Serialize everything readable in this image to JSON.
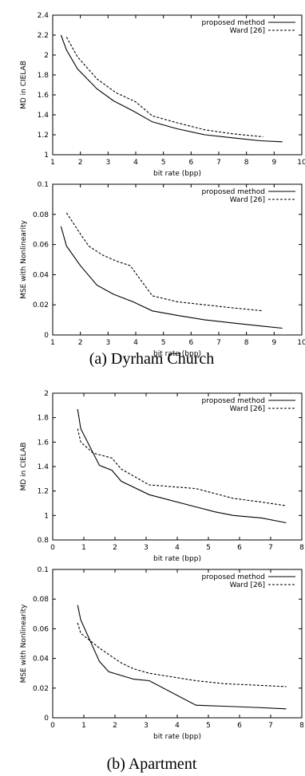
{
  "captions": {
    "a": "(a) Dyrham Church",
    "b": "(b) Apartment"
  },
  "chart_data": [
    {
      "type": "line",
      "xlabel": "bit rate (bpp)",
      "ylabel": "MD in CIELAB",
      "xlim": [
        1,
        10
      ],
      "ylim": [
        1,
        2.4
      ],
      "xticks": [
        1,
        2,
        3,
        4,
        5,
        6,
        7,
        8,
        9,
        10
      ],
      "yticks": [
        1,
        1.2,
        1.4,
        1.6,
        1.8,
        2,
        2.2,
        2.4
      ],
      "xtick_labels": [
        "1",
        "2",
        "3",
        "4",
        "5",
        "6",
        "7",
        "8",
        "9",
        "10"
      ],
      "ytick_labels": [
        "1",
        "1.2",
        "1.4",
        "1.6",
        "1.8",
        "2",
        "2.2",
        "2.4"
      ],
      "legend": "top-right",
      "grid": false,
      "series": [
        {
          "name": "proposed method",
          "style": "solid",
          "x": [
            1.3,
            1.5,
            1.9,
            2.6,
            3.2,
            3.9,
            4.6,
            5.5,
            6.5,
            7.5,
            8.5,
            9.3
          ],
          "y": [
            2.2,
            2.05,
            1.86,
            1.66,
            1.54,
            1.44,
            1.33,
            1.26,
            1.2,
            1.17,
            1.14,
            1.13
          ]
        },
        {
          "name": "Ward [26]",
          "style": "dashed",
          "x": [
            1.5,
            1.9,
            2.6,
            3.3,
            4.0,
            4.6,
            5.5,
            6.5,
            7.5,
            8.6
          ],
          "y": [
            2.18,
            1.98,
            1.76,
            1.62,
            1.53,
            1.39,
            1.32,
            1.25,
            1.21,
            1.18
          ]
        }
      ]
    },
    {
      "type": "line",
      "xlabel": "bit rate (bpp)",
      "ylabel": "MSE with Nonlinearity",
      "xlim": [
        1,
        10
      ],
      "ylim": [
        0,
        0.1
      ],
      "xticks": [
        1,
        2,
        3,
        4,
        5,
        6,
        7,
        8,
        9,
        10
      ],
      "yticks": [
        0,
        0.02,
        0.04,
        0.06,
        0.08,
        0.1
      ],
      "xtick_labels": [
        "1",
        "2",
        "3",
        "4",
        "5",
        "6",
        "7",
        "8",
        "9",
        "10"
      ],
      "ytick_labels": [
        "0",
        "0.02",
        "0.04",
        "0.06",
        "0.08",
        "0.1"
      ],
      "legend": "top-right",
      "grid": false,
      "series": [
        {
          "name": "proposed method",
          "style": "solid",
          "x": [
            1.3,
            1.5,
            2.0,
            2.6,
            3.2,
            3.9,
            4.6,
            5.5,
            6.5,
            7.5,
            8.5,
            9.3
          ],
          "y": [
            0.072,
            0.059,
            0.046,
            0.033,
            0.027,
            0.022,
            0.016,
            0.013,
            0.01,
            0.008,
            0.006,
            0.0045
          ]
        },
        {
          "name": "Ward [26]",
          "style": "dashed",
          "x": [
            1.5,
            2.0,
            2.3,
            2.8,
            3.3,
            3.8,
            4.6,
            5.5,
            6.5,
            7.5,
            8.6
          ],
          "y": [
            0.081,
            0.067,
            0.059,
            0.053,
            0.049,
            0.046,
            0.026,
            0.022,
            0.02,
            0.018,
            0.016
          ]
        }
      ]
    },
    {
      "type": "line",
      "xlabel": "bit rate (bpp)",
      "ylabel": "MD in CIELAB",
      "xlim": [
        0,
        8
      ],
      "ylim": [
        0.8,
        2
      ],
      "xticks": [
        0,
        1,
        2,
        3,
        4,
        5,
        6,
        7,
        8
      ],
      "yticks": [
        0.8,
        1,
        1.2,
        1.4,
        1.6,
        1.8,
        2
      ],
      "xtick_labels": [
        "0",
        "1",
        "2",
        "3",
        "4",
        "5",
        "6",
        "7",
        "8"
      ],
      "ytick_labels": [
        "0.8",
        "1",
        "1.2",
        "1.4",
        "1.6",
        "1.8",
        "2"
      ],
      "legend": "top-right",
      "grid": false,
      "series": [
        {
          "name": "proposed method",
          "style": "solid",
          "x": [
            0.8,
            0.9,
            1.5,
            1.9,
            2.2,
            3.1,
            4.6,
            5.2,
            5.8,
            6.7,
            7.5
          ],
          "y": [
            1.87,
            1.71,
            1.41,
            1.37,
            1.28,
            1.17,
            1.07,
            1.03,
            1.0,
            0.98,
            0.94
          ]
        },
        {
          "name": "Ward [26]",
          "style": "dashed",
          "x": [
            0.8,
            0.9,
            1.3,
            1.9,
            2.2,
            3.1,
            4.6,
            5.8,
            6.7,
            7.5
          ],
          "y": [
            1.71,
            1.6,
            1.51,
            1.47,
            1.38,
            1.25,
            1.22,
            1.14,
            1.11,
            1.08
          ]
        }
      ]
    },
    {
      "type": "line",
      "xlabel": "bit rate (bpp)",
      "ylabel": "MSE with Nonlinearity",
      "xlim": [
        0,
        8
      ],
      "ylim": [
        0,
        0.1
      ],
      "xticks": [
        0,
        1,
        2,
        3,
        4,
        5,
        6,
        7,
        8
      ],
      "yticks": [
        0,
        0.02,
        0.04,
        0.06,
        0.08,
        0.1
      ],
      "xtick_labels": [
        "0",
        "1",
        "2",
        "3",
        "4",
        "5",
        "6",
        "7",
        "8"
      ],
      "ytick_labels": [
        "0",
        "0.02",
        "0.04",
        "0.06",
        "0.08",
        "0.1"
      ],
      "legend": "top-right",
      "grid": false,
      "series": [
        {
          "name": "proposed method",
          "style": "solid",
          "x": [
            0.8,
            0.9,
            1.5,
            1.8,
            2.6,
            3.1,
            4.6,
            5.5,
            6.5,
            7.5
          ],
          "y": [
            0.076,
            0.066,
            0.038,
            0.031,
            0.026,
            0.025,
            0.0085,
            0.0078,
            0.007,
            0.006
          ]
        },
        {
          "name": "Ward [26]",
          "style": "dashed",
          "x": [
            0.8,
            0.9,
            1.5,
            2.2,
            2.6,
            3.1,
            4.6,
            5.5,
            6.5,
            7.5
          ],
          "y": [
            0.064,
            0.057,
            0.047,
            0.037,
            0.033,
            0.03,
            0.025,
            0.023,
            0.022,
            0.021
          ]
        }
      ]
    }
  ]
}
